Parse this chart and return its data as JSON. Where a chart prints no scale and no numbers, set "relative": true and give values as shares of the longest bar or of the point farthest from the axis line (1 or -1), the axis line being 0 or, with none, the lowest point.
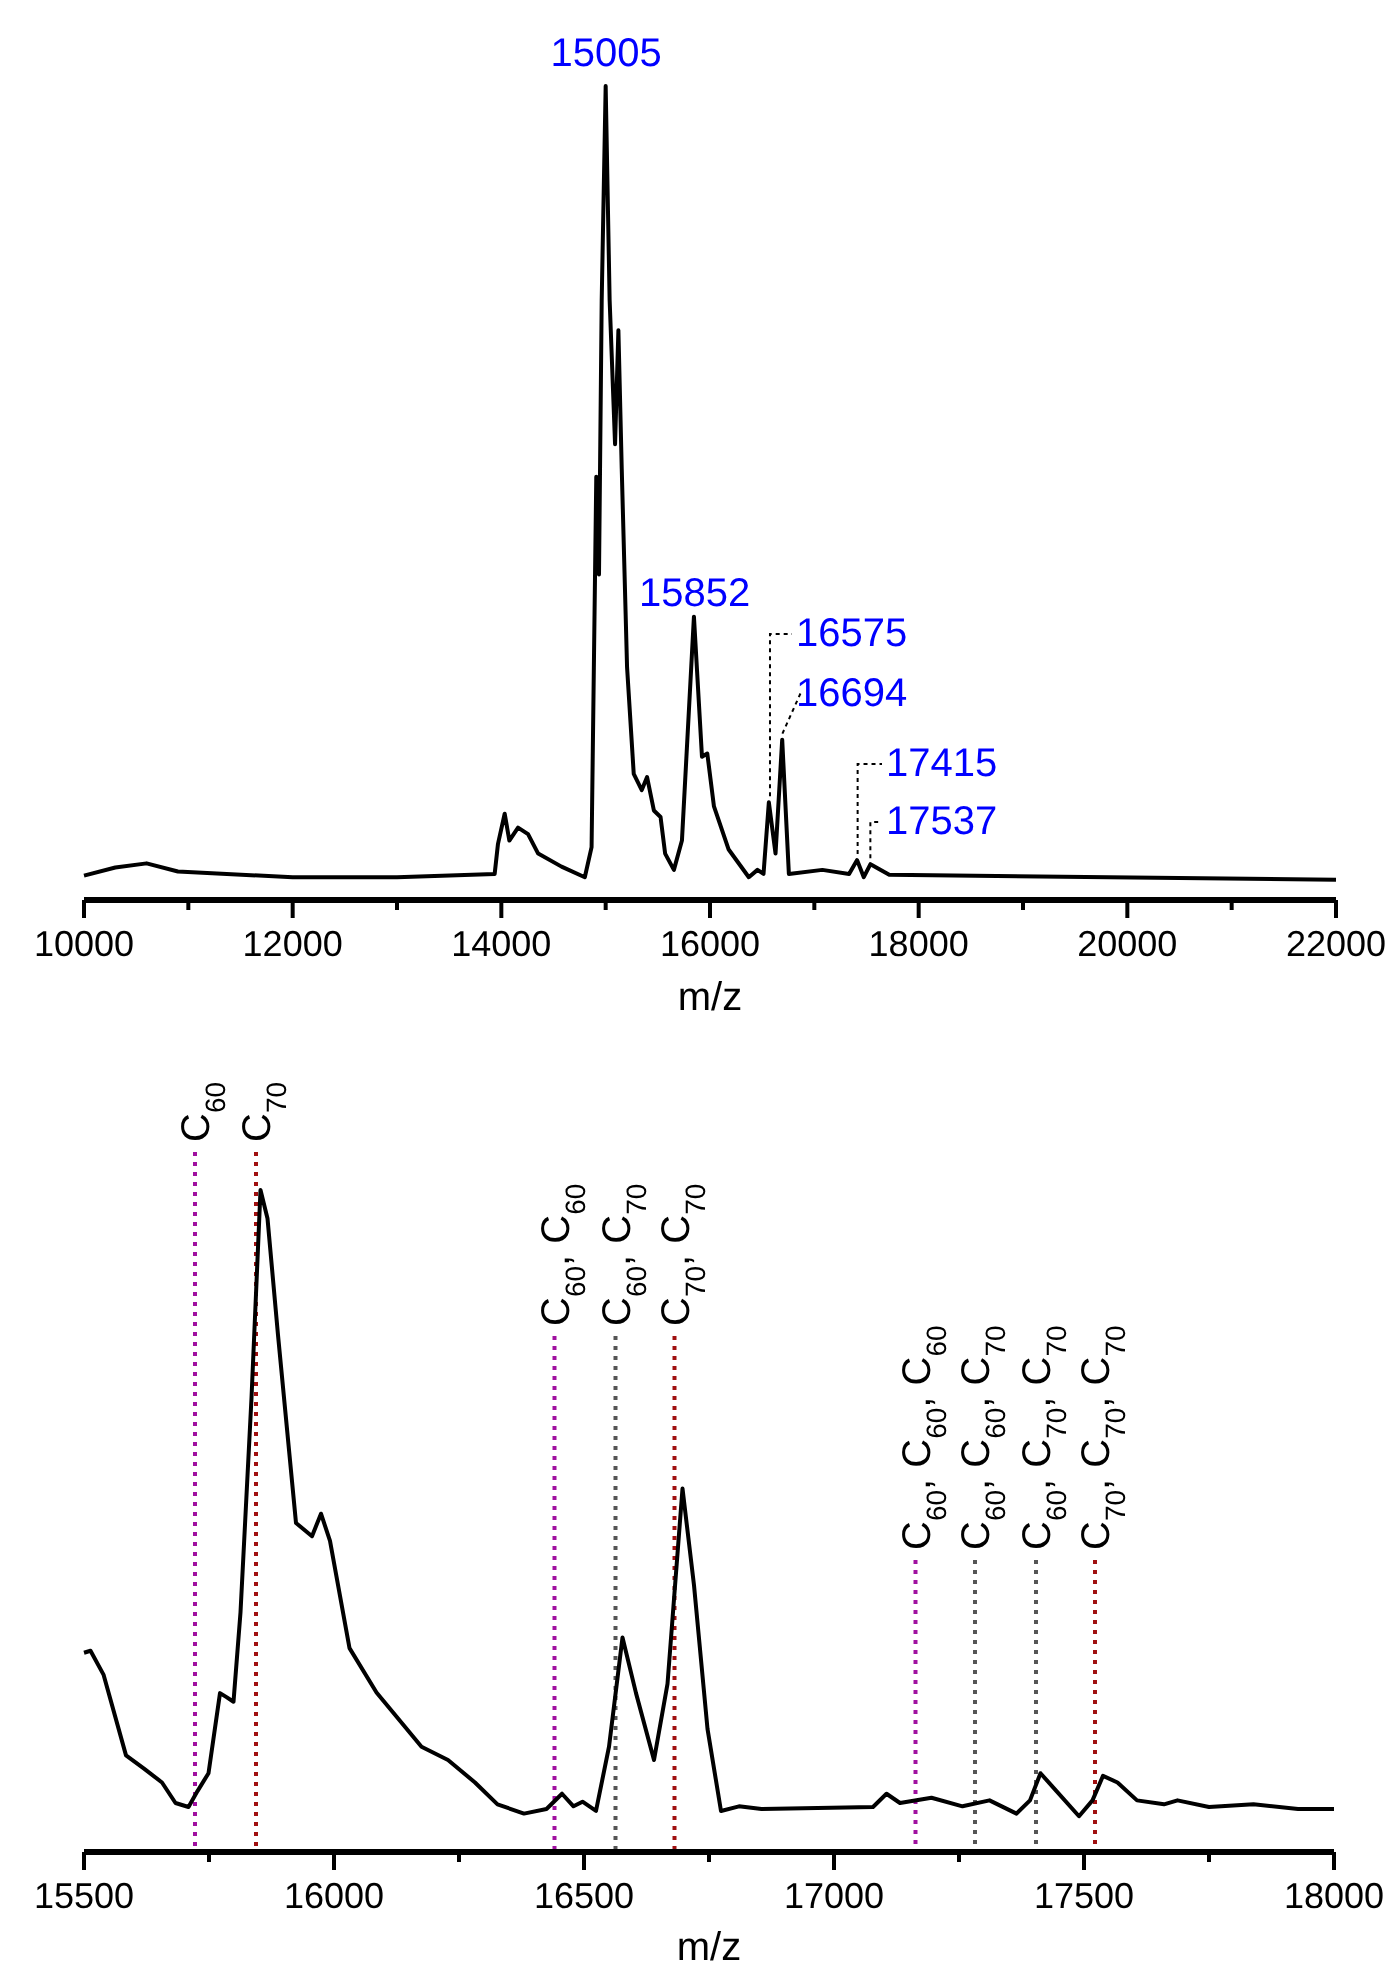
{
  "chart_data": [
    {
      "type": "line",
      "relative": true,
      "xlabel": "m/z",
      "xlim": [
        10000,
        22000
      ],
      "xticks": [
        10000,
        {
          "value": 11000,
          "label": null
        },
        12000,
        {
          "value": 13000,
          "label": null
        },
        14000,
        {
          "value": 15000,
          "label": null
        },
        16000,
        {
          "value": 17000,
          "label": null
        },
        18000,
        {
          "value": 19000,
          "label": null
        },
        20000,
        {
          "value": 21000,
          "label": null
        },
        22000
      ],
      "series": [
        {
          "color": "#000000",
          "x": [
            10000,
            10300,
            10600,
            10900,
            12000,
            13000,
            13936,
            13968,
            14032,
            14077,
            14160,
            14256,
            14353,
            14577,
            14800,
            14865,
            14910,
            14936,
            14962,
            15000,
            15038,
            15090,
            15122,
            15154,
            15205,
            15269,
            15346,
            15397,
            15462,
            15526,
            15570,
            15654,
            15731,
            15846,
            15923,
            15974,
            16038,
            16179,
            16372,
            16455,
            16513,
            16564,
            16628,
            16692,
            16756,
            17077,
            17333,
            17410,
            17474,
            17538,
            17718,
            22000
          ],
          "values": [
            0.03,
            0.04,
            0.045,
            0.035,
            0.028,
            0.028,
            0.032,
            0.069,
            0.106,
            0.073,
            0.089,
            0.081,
            0.057,
            0.041,
            0.028,
            0.065,
            0.52,
            0.4,
            0.737,
            1,
            0.737,
            0.56,
            0.7,
            0.53,
            0.286,
            0.155,
            0.135,
            0.151,
            0.11,
            0.102,
            0.057,
            0.037,
            0.073,
            0.348,
            0.176,
            0.18,
            0.115,
            0.062,
            0.028,
            0.037,
            0.032,
            0.12,
            0.057,
            0.197,
            0.032,
            0.037,
            0.032,
            0.049,
            0.028,
            0.044,
            0.031,
            0.025
          ]
        }
      ],
      "annotations": [
        {
          "text": "15005",
          "x": 15005,
          "y": 1
        },
        {
          "text": "15852",
          "x": 15852,
          "y": 0.348
        },
        {
          "text": "16575",
          "x": 16575,
          "y": 0.12
        },
        {
          "text": "16694",
          "x": 16694,
          "y": 0.197
        },
        {
          "text": "17415",
          "x": 17415,
          "y": 0.049
        },
        {
          "text": "17537",
          "x": 17537,
          "y": 0.044
        }
      ]
    },
    {
      "type": "line",
      "relative": true,
      "xlabel": "m/z",
      "xlim": [
        15500,
        18000
      ],
      "xticks": [
        15500,
        {
          "value": 15750,
          "label": null
        },
        16000,
        {
          "value": 16250,
          "label": null
        },
        16500,
        {
          "value": 16750,
          "label": null
        },
        17000,
        {
          "value": 17250,
          "label": null
        },
        17500,
        {
          "value": 17750,
          "label": null
        },
        18000
      ],
      "series": [
        {
          "color": "#000000",
          "x": [
            15500,
            15513,
            15539,
            15584,
            15620,
            15656,
            15683,
            15709,
            15727,
            15749,
            15772,
            15785,
            15799,
            15813,
            15835,
            15853,
            15867,
            15888,
            15924,
            15956,
            15974,
            15992,
            16031,
            16085,
            16175,
            16228,
            16282,
            16327,
            16380,
            16425,
            16456,
            16479,
            16497,
            16524,
            16550,
            16577,
            16604,
            16640,
            16667,
            16697,
            16720,
            16747,
            16774,
            16810,
            16855,
            17078,
            17105,
            17132,
            17195,
            17257,
            17311,
            17365,
            17392,
            17413,
            17445,
            17490,
            17517,
            17538,
            17567,
            17606,
            17660,
            17687,
            17750,
            17839,
            17928,
            18000
          ],
          "values": [
            0.301,
            0.304,
            0.268,
            0.146,
            0.126,
            0.105,
            0.074,
            0.068,
            0.092,
            0.119,
            0.24,
            0.234,
            0.227,
            0.362,
            0.686,
            1,
            0.957,
            0.781,
            0.497,
            0.477,
            0.511,
            0.47,
            0.308,
            0.241,
            0.159,
            0.139,
            0.105,
            0.072,
            0.058,
            0.065,
            0.088,
            0.069,
            0.076,
            0.062,
            0.159,
            0.324,
            0.24,
            0.139,
            0.254,
            0.549,
            0.403,
            0.186,
            0.062,
            0.069,
            0.065,
            0.068,
            0.088,
            0.074,
            0.082,
            0.069,
            0.078,
            0.058,
            0.078,
            0.119,
            0.092,
            0.054,
            0.078,
            0.115,
            0.105,
            0.078,
            0.072,
            0.078,
            0.068,
            0.072,
            0.065,
            0.065
          ]
        }
      ],
      "ref_lines": [
        {
          "axis": "x",
          "value": 15722,
          "label": "C$_{60}$",
          "color": "#a010a0",
          "line_style": "dotted"
        },
        {
          "axis": "x",
          "value": 15844,
          "label": "C$_{70}$",
          "color": "#a01010",
          "line_style": "dotted"
        },
        {
          "axis": "x",
          "value": 16441,
          "label": "C$_{60}$, C$_{60}$",
          "color": "#a010a0",
          "line_style": "dotted"
        },
        {
          "axis": "x",
          "value": 16563,
          "label": "C$_{60}$, C$_{70}$",
          "color": "#555555",
          "line_style": "dotted"
        },
        {
          "axis": "x",
          "value": 16681,
          "label": "C$_{70}$, C$_{70}$",
          "color": "#a01010",
          "line_style": "dotted"
        },
        {
          "axis": "x",
          "value": 17163,
          "label": "C$_{60}$, C$_{60}$, C$_{60}$",
          "color": "#a010a0",
          "line_style": "dotted"
        },
        {
          "axis": "x",
          "value": 17282,
          "label": "C$_{60}$, C$_{60}$, C$_{70}$",
          "color": "#555555",
          "line_style": "dotted"
        },
        {
          "axis": "x",
          "value": 17404,
          "label": "C$_{60}$, C$_{70}$, C$_{70}$",
          "color": "#555555",
          "line_style": "dotted"
        },
        {
          "axis": "x",
          "value": 17522,
          "label": "C$_{70}$, C$_{70}$, C$_{70}$",
          "color": "#a01010",
          "line_style": "dotted"
        }
      ]
    }
  ]
}
